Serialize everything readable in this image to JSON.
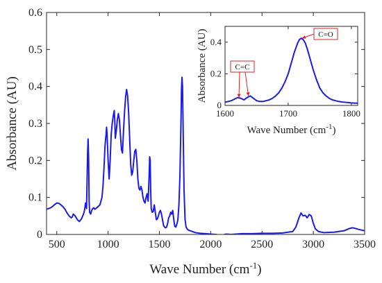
{
  "chart_data": [
    {
      "type": "line",
      "xlabel": "Wave Number (cm",
      "xlabel_sup": "-1",
      "xlabel_close": ")",
      "ylabel": "Absorbance (AU)",
      "xlim": [
        400,
        3500
      ],
      "ylim": [
        0,
        0.6
      ],
      "xticks": [
        500,
        1000,
        1500,
        2000,
        2500,
        3000,
        3500
      ],
      "yticks": [
        0,
        0.1,
        0.2,
        0.3,
        0.4,
        0.5,
        0.6
      ],
      "ytick_labels": [
        "0",
        "0.1",
        "0.2",
        "0.3",
        "0.4",
        "0.5",
        "0.6"
      ],
      "grid": false,
      "color": "#1a1aee",
      "series": [
        {
          "x": [
            400,
            420,
            440,
            460,
            480,
            500,
            520,
            540,
            560,
            580,
            600,
            620,
            640,
            650,
            660,
            680,
            700,
            720,
            740,
            760,
            770,
            780,
            790,
            800,
            805,
            810,
            815,
            820,
            830,
            840,
            850,
            860,
            870,
            880,
            900,
            920,
            940,
            950,
            960,
            970,
            980,
            985,
            990,
            1000,
            1010,
            1020,
            1030,
            1040,
            1050,
            1060,
            1065,
            1070,
            1080,
            1090,
            1100,
            1110,
            1120,
            1130,
            1140,
            1150,
            1160,
            1170,
            1180,
            1190,
            1200,
            1210,
            1220,
            1230,
            1240,
            1250,
            1260,
            1270,
            1280,
            1290,
            1300,
            1310,
            1320,
            1330,
            1340,
            1350,
            1360,
            1370,
            1380,
            1390,
            1400,
            1405,
            1410,
            1415,
            1420,
            1430,
            1440,
            1450,
            1460,
            1470,
            1480,
            1490,
            1500,
            1510,
            1520,
            1530,
            1540,
            1550,
            1560,
            1570,
            1580,
            1590,
            1600,
            1610,
            1620,
            1630,
            1640,
            1650,
            1660,
            1670,
            1680,
            1690,
            1700,
            1710,
            1715,
            1720,
            1725,
            1730,
            1740,
            1750,
            1760,
            1770,
            1780,
            1800,
            1850,
            1900,
            1950,
            2000,
            2050,
            2100,
            2150,
            2200,
            2300,
            2400,
            2500,
            2600,
            2700,
            2800,
            2830,
            2860,
            2880,
            2900,
            2920,
            2940,
            2960,
            2980,
            3000,
            3020,
            3050,
            3100,
            3200,
            3300,
            3350,
            3380,
            3400,
            3450,
            3500
          ],
          "y": [
            0.068,
            0.07,
            0.072,
            0.076,
            0.081,
            0.085,
            0.084,
            0.08,
            0.075,
            0.068,
            0.058,
            0.05,
            0.045,
            0.047,
            0.055,
            0.05,
            0.04,
            0.035,
            0.042,
            0.055,
            0.065,
            0.085,
            0.07,
            0.22,
            0.258,
            0.21,
            0.09,
            0.06,
            0.055,
            0.065,
            0.07,
            0.072,
            0.068,
            0.07,
            0.075,
            0.08,
            0.1,
            0.13,
            0.18,
            0.24,
            0.27,
            0.29,
            0.27,
            0.2,
            0.15,
            0.2,
            0.27,
            0.3,
            0.32,
            0.335,
            0.31,
            0.26,
            0.28,
            0.31,
            0.327,
            0.31,
            0.27,
            0.23,
            0.22,
            0.28,
            0.33,
            0.37,
            0.392,
            0.375,
            0.33,
            0.26,
            0.19,
            0.16,
            0.17,
            0.2,
            0.225,
            0.23,
            0.2,
            0.15,
            0.125,
            0.12,
            0.13,
            0.12,
            0.1,
            0.09,
            0.085,
            0.1,
            0.11,
            0.09,
            0.16,
            0.21,
            0.2,
            0.12,
            0.07,
            0.06,
            0.062,
            0.08,
            0.06,
            0.04,
            0.042,
            0.05,
            0.06,
            0.065,
            0.055,
            0.04,
            0.025,
            0.02,
            0.018,
            0.02,
            0.03,
            0.045,
            0.05,
            0.06,
            0.055,
            0.065,
            0.04,
            0.022,
            0.02,
            0.028,
            0.04,
            0.08,
            0.16,
            0.3,
            0.39,
            0.425,
            0.4,
            0.31,
            0.12,
            0.04,
            0.02,
            0.015,
            0.012,
            0.01,
            0.005,
            0.003,
            0.002,
            0.001,
            0.0,
            -0.003,
            0.001,
            0.0,
            0.002,
            0.002,
            0.003,
            0.003,
            0.004,
            0.008,
            0.02,
            0.045,
            0.058,
            0.05,
            0.052,
            0.045,
            0.054,
            0.05,
            0.03,
            0.015,
            0.008,
            0.005,
            0.006,
            0.01,
            0.016,
            0.018,
            0.017,
            0.013,
            0.01
          ]
        }
      ]
    },
    {
      "type": "line",
      "xlabel": "Wave Number (cm",
      "xlabel_sup": "-1",
      "xlabel_close": ")",
      "ylabel": "Absorbance (AU)",
      "xlim": [
        1600,
        1810
      ],
      "ylim": [
        0,
        0.5
      ],
      "xticks": [
        1600,
        1700,
        1800
      ],
      "yticks": [
        0,
        0.2,
        0.4
      ],
      "ytick_labels": [
        "0",
        "0.2",
        "0.4"
      ],
      "grid": false,
      "color": "#1a1aee",
      "annotations": [
        {
          "text": "C=C",
          "x": 1627,
          "y": 0.065
        },
        {
          "text": "C=O",
          "x": 1722,
          "y": 0.425
        }
      ],
      "series": [
        {
          "x": [
            1600,
            1605,
            1610,
            1615,
            1620,
            1625,
            1630,
            1635,
            1640,
            1645,
            1650,
            1655,
            1660,
            1665,
            1670,
            1675,
            1680,
            1685,
            1690,
            1695,
            1700,
            1705,
            1710,
            1715,
            1718,
            1721,
            1724,
            1727,
            1730,
            1735,
            1740,
            1745,
            1750,
            1755,
            1760,
            1765,
            1770,
            1775,
            1780,
            1785,
            1790,
            1795,
            1800,
            1805,
            1810
          ],
          "y": [
            0.02,
            0.025,
            0.03,
            0.04,
            0.05,
            0.045,
            0.035,
            0.05,
            0.06,
            0.045,
            0.03,
            0.025,
            0.025,
            0.03,
            0.035,
            0.045,
            0.06,
            0.08,
            0.11,
            0.15,
            0.2,
            0.27,
            0.34,
            0.395,
            0.418,
            0.425,
            0.415,
            0.395,
            0.36,
            0.29,
            0.22,
            0.16,
            0.11,
            0.08,
            0.06,
            0.045,
            0.035,
            0.03,
            0.025,
            0.022,
            0.02,
            0.018,
            0.016,
            0.015,
            0.014
          ]
        }
      ]
    }
  ]
}
